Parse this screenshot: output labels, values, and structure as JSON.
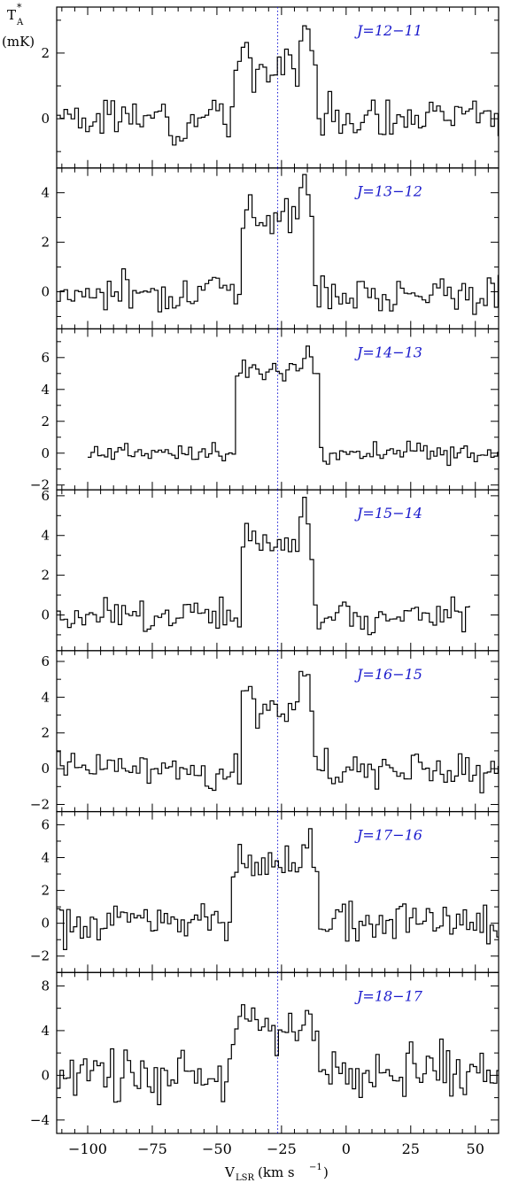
{
  "chart_data": {
    "type": "line",
    "step": true,
    "xlabel": "V_LSR (km s^-1)",
    "xlabel_main": "V",
    "xlabel_sub": "LSR",
    "xlabel_unit_pre": " (km s",
    "xlabel_unit_sup": "−1",
    "xlabel_unit_post": ")",
    "ylabel": "T_A* (mK)",
    "ylabel_main": "T",
    "ylabel_sub": "A",
    "ylabel_sup": "*",
    "ylabel_unit": "(mK)",
    "xlim": [
      -112,
      59
    ],
    "x_ticks": [
      -100,
      -75,
      -50,
      -25,
      0,
      25,
      50
    ],
    "x_tick_labels": [
      "−100",
      "−75",
      "−50",
      "−25",
      "0",
      "25",
      "50"
    ],
    "reference_velocity": -26.5,
    "reference_color": "#2424d8",
    "label_color": "#1a1acc",
    "panels": [
      {
        "label": "J=12−11",
        "ylim": [
          -1.5,
          3.4
        ],
        "yticks": [
          0,
          2
        ],
        "ytick_labels": [
          "0",
          "2"
        ],
        "x_start": -112,
        "x_end": 59,
        "channel_width": 1.4,
        "noise": 0.45,
        "horns": [
          2.4,
          2.8
        ],
        "center": 1.6,
        "edges": [
          -43,
          -11
        ],
        "seed": 3
      },
      {
        "label": "J=13−12",
        "ylim": [
          -1.5,
          5.0
        ],
        "yticks": [
          0,
          2,
          4
        ],
        "ytick_labels": [
          "0",
          "2",
          "4"
        ],
        "x_start": -112,
        "x_end": 59,
        "channel_width": 1.4,
        "noise": 0.5,
        "horns": [
          3.5,
          4.5
        ],
        "center": 3.1,
        "edges": [
          -41,
          -12
        ],
        "seed": 7
      },
      {
        "label": "J=14−13",
        "ylim": [
          -2.3,
          7.8
        ],
        "yticks": [
          -2,
          0,
          2,
          4,
          6
        ],
        "ytick_labels": [
          "−2",
          "0",
          "2",
          "4",
          "6"
        ],
        "x_start": -100,
        "x_end": 59,
        "channel_width": 1.3,
        "noise": 0.45,
        "horns": [
          5.0,
          6.6
        ],
        "center": 5.2,
        "edges": [
          -43,
          -10
        ],
        "seed": 11
      },
      {
        "label": "J=15−14",
        "ylim": [
          -1.8,
          6.3
        ],
        "yticks": [
          0,
          2,
          4,
          6
        ],
        "ytick_labels": [
          "0",
          "2",
          "4",
          "6"
        ],
        "x_start": -112,
        "x_end": 48,
        "channel_width": 1.4,
        "noise": 0.55,
        "horns": [
          4.5,
          5.6
        ],
        "center": 3.6,
        "edges": [
          -41,
          -12
        ],
        "seed": 17
      },
      {
        "label": "J=16−15",
        "ylim": [
          -2.4,
          6.6
        ],
        "yticks": [
          -2,
          0,
          2,
          4,
          6
        ],
        "ytick_labels": [
          "−2",
          "0",
          "2",
          "4",
          "6"
        ],
        "x_start": -112,
        "x_end": 59,
        "channel_width": 1.4,
        "noise": 0.75,
        "horns": [
          4.6,
          5.8
        ],
        "center": 3.0,
        "edges": [
          -41,
          -12
        ],
        "seed": 23
      },
      {
        "label": "J=17−16",
        "ylim": [
          -3.0,
          6.8
        ],
        "yticks": [
          -2,
          0,
          2,
          4,
          6
        ],
        "ytick_labels": [
          "−2",
          "0",
          "2",
          "4",
          "6"
        ],
        "x_start": -112,
        "x_end": 59,
        "channel_width": 1.3,
        "noise": 0.9,
        "horns": [
          4.4,
          4.9
        ],
        "center": 3.4,
        "edges": [
          -45,
          -10
        ],
        "seed": 29
      },
      {
        "label": "J=18−17",
        "ylim": [
          -5.2,
          9.2
        ],
        "yticks": [
          -4,
          0,
          4,
          8
        ],
        "ytick_labels": [
          "−4",
          "0",
          "4",
          "8"
        ],
        "x_start": -112,
        "x_end": 59,
        "channel_width": 1.3,
        "noise": 1.55,
        "horns": [
          6.2,
          5.4
        ],
        "center": 4.2,
        "edges": [
          -45,
          -10
        ],
        "seed": 31
      }
    ]
  }
}
